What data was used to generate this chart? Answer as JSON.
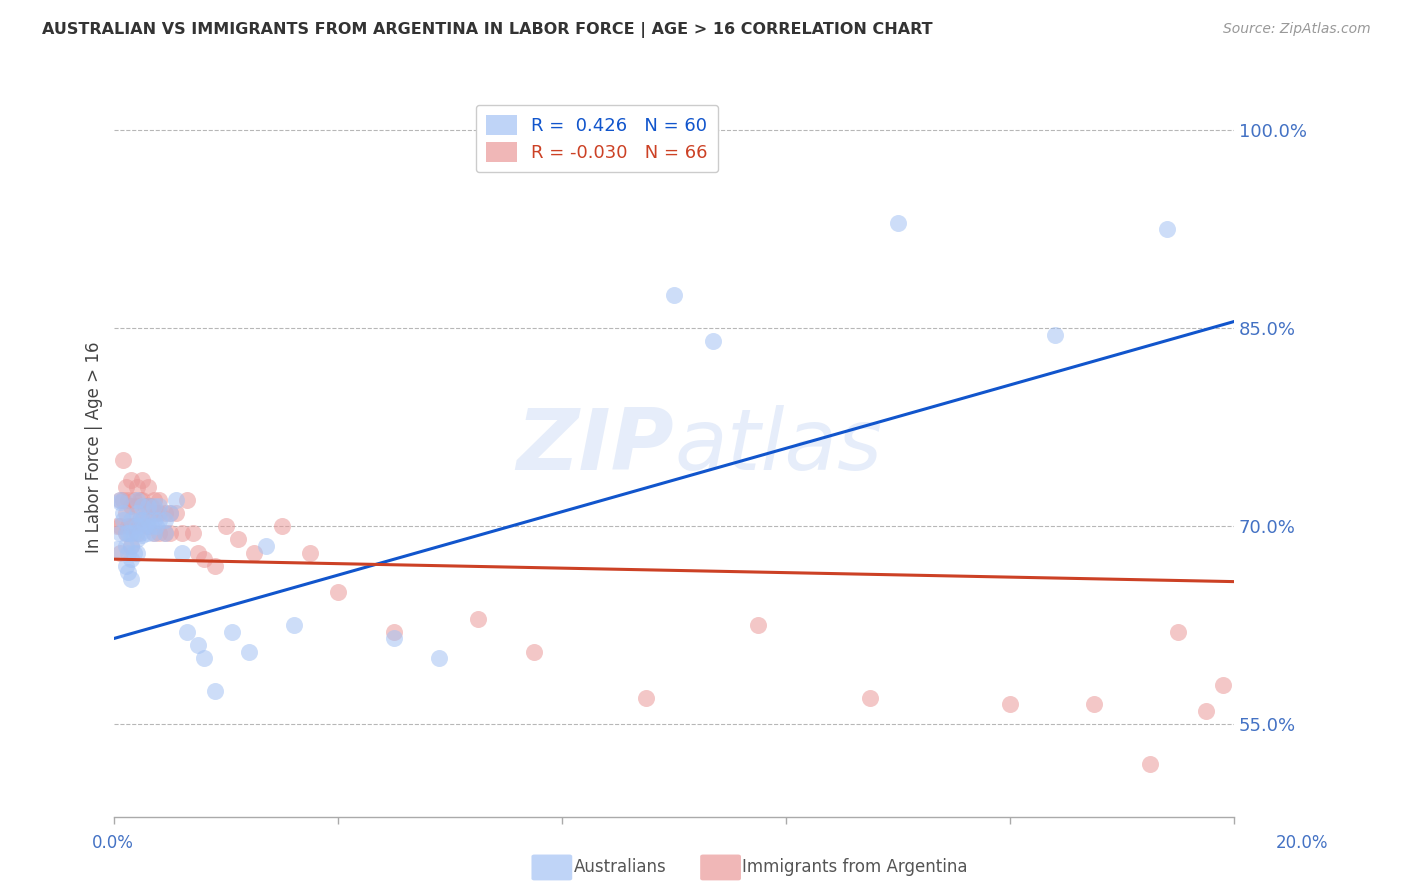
{
  "title": "AUSTRALIAN VS IMMIGRANTS FROM ARGENTINA IN LABOR FORCE | AGE > 16 CORRELATION CHART",
  "source": "Source: ZipAtlas.com",
  "ylabel": "In Labor Force | Age > 16",
  "ytick_labels": [
    "55.0%",
    "70.0%",
    "85.0%",
    "100.0%"
  ],
  "ytick_values": [
    0.55,
    0.7,
    0.85,
    1.0
  ],
  "xlim": [
    0.0,
    0.2
  ],
  "ylim": [
    0.48,
    1.04
  ],
  "watermark": "ZIPatlas",
  "blue_color": "#a4c2f4",
  "pink_color": "#ea9999",
  "line_blue": "#1155cc",
  "line_pink": "#cc4125",
  "grid_color": "#b7b7b7",
  "axis_label_color": "#4472c4",
  "title_color": "#333333",
  "source_color": "#999999",
  "legend_r_blue": "R =  0.426",
  "legend_n_blue": "N = 60",
  "legend_r_pink": "R = -0.030",
  "legend_n_pink": "N = 66",
  "blue_scatter_x": [
    0.0005,
    0.001,
    0.001,
    0.001,
    0.0015,
    0.0015,
    0.002,
    0.002,
    0.002,
    0.0025,
    0.0025,
    0.0025,
    0.003,
    0.003,
    0.003,
    0.003,
    0.003,
    0.0035,
    0.0035,
    0.004,
    0.004,
    0.004,
    0.004,
    0.004,
    0.0045,
    0.0045,
    0.005,
    0.005,
    0.005,
    0.0055,
    0.006,
    0.006,
    0.006,
    0.0065,
    0.007,
    0.007,
    0.007,
    0.0075,
    0.008,
    0.008,
    0.009,
    0.009,
    0.01,
    0.011,
    0.012,
    0.013,
    0.015,
    0.016,
    0.018,
    0.021,
    0.024,
    0.027,
    0.032,
    0.05,
    0.058,
    0.1,
    0.107,
    0.14,
    0.168,
    0.188
  ],
  "blue_scatter_y": [
    0.683,
    0.718,
    0.695,
    0.72,
    0.71,
    0.705,
    0.695,
    0.685,
    0.67,
    0.695,
    0.68,
    0.665,
    0.705,
    0.695,
    0.685,
    0.675,
    0.66,
    0.695,
    0.68,
    0.72,
    0.71,
    0.7,
    0.69,
    0.68,
    0.705,
    0.695,
    0.715,
    0.705,
    0.693,
    0.7,
    0.715,
    0.705,
    0.695,
    0.7,
    0.715,
    0.705,
    0.695,
    0.7,
    0.715,
    0.705,
    0.705,
    0.695,
    0.71,
    0.72,
    0.68,
    0.62,
    0.61,
    0.6,
    0.575,
    0.62,
    0.605,
    0.685,
    0.625,
    0.615,
    0.6,
    0.875,
    0.84,
    0.93,
    0.845,
    0.925
  ],
  "pink_scatter_x": [
    0.0005,
    0.001,
    0.001,
    0.001,
    0.0015,
    0.0015,
    0.002,
    0.002,
    0.002,
    0.0025,
    0.0025,
    0.003,
    0.003,
    0.003,
    0.003,
    0.0035,
    0.0035,
    0.004,
    0.004,
    0.004,
    0.0045,
    0.0045,
    0.005,
    0.005,
    0.005,
    0.0055,
    0.006,
    0.006,
    0.006,
    0.0065,
    0.007,
    0.007,
    0.007,
    0.0075,
    0.008,
    0.008,
    0.008,
    0.009,
    0.009,
    0.01,
    0.01,
    0.011,
    0.012,
    0.013,
    0.014,
    0.015,
    0.016,
    0.018,
    0.02,
    0.022,
    0.025,
    0.03,
    0.035,
    0.04,
    0.05,
    0.065,
    0.075,
    0.095,
    0.115,
    0.135,
    0.16,
    0.175,
    0.185,
    0.19,
    0.195,
    0.198
  ],
  "pink_scatter_y": [
    0.7,
    0.72,
    0.7,
    0.68,
    0.75,
    0.72,
    0.73,
    0.71,
    0.695,
    0.72,
    0.7,
    0.735,
    0.715,
    0.7,
    0.685,
    0.72,
    0.7,
    0.73,
    0.715,
    0.695,
    0.72,
    0.705,
    0.735,
    0.72,
    0.705,
    0.715,
    0.73,
    0.715,
    0.7,
    0.715,
    0.72,
    0.71,
    0.695,
    0.71,
    0.72,
    0.71,
    0.695,
    0.71,
    0.695,
    0.71,
    0.695,
    0.71,
    0.695,
    0.72,
    0.695,
    0.68,
    0.675,
    0.67,
    0.7,
    0.69,
    0.68,
    0.7,
    0.68,
    0.65,
    0.62,
    0.63,
    0.605,
    0.57,
    0.625,
    0.57,
    0.565,
    0.565,
    0.52,
    0.62,
    0.56,
    0.58
  ],
  "blue_trend_x": [
    0.0,
    0.2
  ],
  "blue_trend_y": [
    0.615,
    0.855
  ],
  "pink_trend_x": [
    0.0,
    0.2
  ],
  "pink_trend_y": [
    0.675,
    0.658
  ],
  "bottom_label_left": "Australians",
  "bottom_label_right": "Immigrants from Argentina"
}
